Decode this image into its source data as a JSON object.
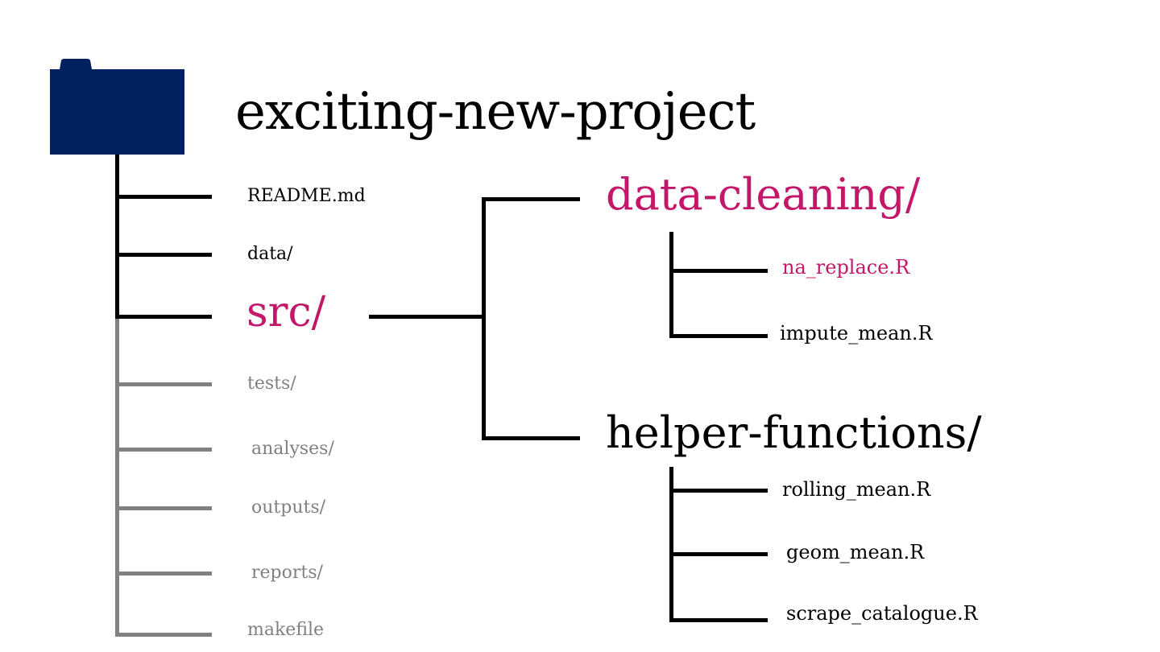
{
  "colors": {
    "folder": "#002060",
    "accent": "#c3176a",
    "primary_line": "#000000",
    "secondary_line": "#808080",
    "muted_text": "#808080"
  },
  "root": {
    "icon": "folder-icon",
    "name": "exciting-new-project"
  },
  "root_children": [
    {
      "label": "README.md",
      "style": "normal"
    },
    {
      "label": "data/",
      "style": "normal"
    },
    {
      "label": "src/",
      "style": "highlight"
    },
    {
      "label": "tests/",
      "style": "muted"
    },
    {
      "label": "analyses/",
      "style": "muted"
    },
    {
      "label": "outputs/",
      "style": "muted"
    },
    {
      "label": "reports/",
      "style": "muted"
    },
    {
      "label": "makefile",
      "style": "muted"
    }
  ],
  "src_children": [
    {
      "name": "data-cleaning/",
      "style": "highlight",
      "files": [
        {
          "label": "na_replace.R",
          "style": "highlight"
        },
        {
          "label": "impute_mean.R",
          "style": "normal"
        }
      ]
    },
    {
      "name": "helper-functions/",
      "style": "normal",
      "files": [
        {
          "label": "rolling_mean.R",
          "style": "normal"
        },
        {
          "label": "geom_mean.R",
          "style": "normal"
        },
        {
          "label": "scrape_catalogue.R",
          "style": "normal"
        }
      ]
    }
  ]
}
